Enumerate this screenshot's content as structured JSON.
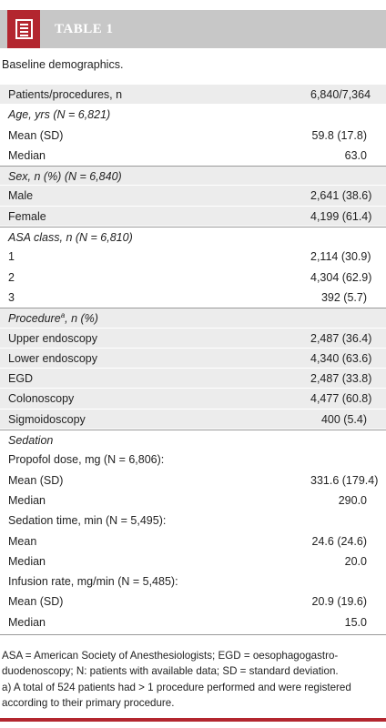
{
  "header": {
    "title": "TABLE 1",
    "icon": "document-icon"
  },
  "caption": "Baseline demographics.",
  "rows": [
    {
      "label": "Patients/procedures, n",
      "value": "6,840/7,364",
      "type": "data",
      "shade": true
    },
    {
      "label": "Age, yrs (N = 6,821)",
      "value": "",
      "type": "header",
      "shade": false
    },
    {
      "label": "Mean (SD)",
      "value": "59.8 (17.8)",
      "type": "data",
      "shade": false
    },
    {
      "label": "Median",
      "value": "63.0",
      "type": "data",
      "shade": false
    },
    {
      "label": "Sex, n (%) (N = 6,840)",
      "value": "",
      "type": "header",
      "shade": true
    },
    {
      "label": "Male",
      "value": "2,641 (38.6)",
      "type": "data",
      "shade": true
    },
    {
      "label": "Female",
      "value": "4,199 (61.4)",
      "type": "data",
      "shade": true
    },
    {
      "label": "ASA class, n (N = 6,810)",
      "value": "",
      "type": "header",
      "shade": false
    },
    {
      "label": "1",
      "value": "2,114 (30.9)",
      "type": "data",
      "shade": false
    },
    {
      "label": "2",
      "value": "4,304 (62.9)",
      "type": "data",
      "shade": false
    },
    {
      "label": "3",
      "value": "392 (5.7)",
      "type": "data",
      "shade": false
    },
    {
      "label": "Procedure",
      "label_sup": "a",
      "label_suffix": ", n (%)",
      "value": "",
      "type": "header",
      "shade": true
    },
    {
      "label": "Upper endoscopy",
      "value": "2,487 (36.4)",
      "type": "data",
      "shade": true
    },
    {
      "label": "Lower endoscopy",
      "value": "4,340 (63.6)",
      "type": "data",
      "shade": true
    },
    {
      "label": "EGD",
      "value": "2,487 (33.8)",
      "type": "data",
      "shade": true
    },
    {
      "label": "Colonoscopy",
      "value": "4,477 (60.8)",
      "type": "data",
      "shade": true
    },
    {
      "label": "Sigmoidoscopy",
      "value": "400 (5.4)",
      "type": "data",
      "shade": true
    },
    {
      "label": "Sedation",
      "value": "",
      "type": "header",
      "shade": false
    },
    {
      "label": "Propofol dose, mg (N = 6,806):",
      "value": "",
      "type": "data",
      "shade": false
    },
    {
      "label": "Mean (SD)",
      "value": "331.6 (179.4)",
      "type": "data",
      "shade": false
    },
    {
      "label": "Median",
      "value": "290.0",
      "type": "data",
      "shade": false
    },
    {
      "label": "Sedation time, min (N = 5,495):",
      "value": "",
      "type": "data",
      "shade": false
    },
    {
      "label": "Mean",
      "value": "24.6 (24.6)",
      "type": "data",
      "shade": false
    },
    {
      "label": "Median",
      "value": "20.0",
      "type": "data",
      "shade": false
    },
    {
      "label": "Infusion rate, mg/min (N = 5,485):",
      "value": "",
      "type": "data",
      "shade": false
    },
    {
      "label": "Mean (SD)",
      "value": "20.9 (19.6)",
      "type": "data",
      "shade": false
    },
    {
      "label": "Median",
      "value": "15.0",
      "type": "data",
      "shade": false
    }
  ],
  "footnotes": [
    "ASA = American Society of Anesthesiologists; EGD = oesophagogastro-duodenoscopy; N: patients with available data; SD = standard deviation.",
    "a) A total of 524 patients had > 1 procedure performed and were registered according to their primary procedure."
  ],
  "colors": {
    "accent": "#b3262f",
    "banner": "#c7c7c7",
    "row_shade": "#ececec"
  }
}
